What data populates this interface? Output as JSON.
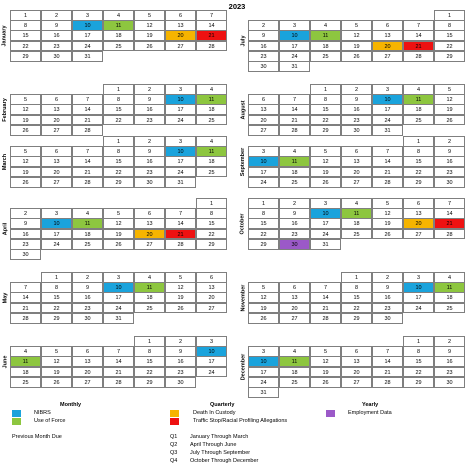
{
  "year": "2023",
  "colors": {
    "nibrs": "#1aa3dc",
    "force": "#8dc63f",
    "death": "#f6b400",
    "traffic": "#ee1111",
    "employ": "#9b59c8"
  },
  "months": [
    {
      "name": "January",
      "side": "left",
      "row": 0,
      "weeks": [
        [
          "1",
          "2",
          "3",
          "4",
          "5",
          "6",
          "7"
        ],
        [
          "8",
          "9",
          "10",
          "11",
          "12",
          "13",
          "14"
        ],
        [
          "15",
          "16",
          "17",
          "18",
          "19",
          "20",
          "21"
        ],
        [
          "22",
          "23",
          "24",
          "25",
          "26",
          "27",
          "28"
        ],
        [
          "29",
          "30",
          "31",
          "",
          "",
          "",
          ""
        ]
      ],
      "marks": {
        "10": "nibrs",
        "11": "force",
        "20": "death",
        "21": "traffic"
      }
    },
    {
      "name": "February",
      "side": "left",
      "row": 1,
      "weeks": [
        [
          "",
          "",
          "",
          "1",
          "2",
          "3",
          "4"
        ],
        [
          "5",
          "6",
          "7",
          "8",
          "9",
          "10",
          "11"
        ],
        [
          "12",
          "13",
          "14",
          "15",
          "16",
          "17",
          "18"
        ],
        [
          "19",
          "20",
          "21",
          "22",
          "23",
          "24",
          "25"
        ],
        [
          "26",
          "27",
          "28",
          "",
          "",
          "",
          ""
        ]
      ],
      "marks": {
        "10": "nibrs",
        "11": "force"
      }
    },
    {
      "name": "March",
      "side": "left",
      "row": 2,
      "weeks": [
        [
          "",
          "",
          "",
          "1",
          "2",
          "3",
          "4"
        ],
        [
          "5",
          "6",
          "7",
          "8",
          "9",
          "10",
          "11"
        ],
        [
          "12",
          "13",
          "14",
          "15",
          "16",
          "17",
          "18"
        ],
        [
          "19",
          "20",
          "21",
          "22",
          "23",
          "24",
          "25"
        ],
        [
          "26",
          "27",
          "28",
          "29",
          "30",
          "31",
          ""
        ]
      ],
      "marks": {
        "10": "nibrs",
        "11": "force"
      }
    },
    {
      "name": "April",
      "side": "left",
      "row": 3,
      "weeks": [
        [
          "",
          "",
          "",
          "",
          "",
          "",
          "1"
        ],
        [
          "2",
          "3",
          "4",
          "5",
          "6",
          "7",
          "8"
        ],
        [
          "9",
          "10",
          "11",
          "12",
          "13",
          "14",
          "15"
        ],
        [
          "16",
          "17",
          "18",
          "19",
          "20",
          "21",
          "22"
        ],
        [
          "23",
          "24",
          "25",
          "26",
          "27",
          "28",
          "29"
        ],
        [
          "30",
          "",
          "",
          "",
          "",
          "",
          ""
        ]
      ],
      "marks": {
        "10": "nibrs",
        "11": "force",
        "20": "death",
        "21": "traffic"
      }
    },
    {
      "name": "May",
      "side": "left",
      "row": 4,
      "weeks": [
        [
          "",
          "1",
          "2",
          "3",
          "4",
          "5",
          "6"
        ],
        [
          "7",
          "8",
          "9",
          "10",
          "11",
          "12",
          "13"
        ],
        [
          "14",
          "15",
          "16",
          "17",
          "18",
          "19",
          "20"
        ],
        [
          "21",
          "22",
          "23",
          "24",
          "25",
          "26",
          "27"
        ],
        [
          "28",
          "29",
          "30",
          "31",
          "",
          "",
          ""
        ]
      ],
      "marks": {
        "10": "nibrs",
        "11": "force"
      }
    },
    {
      "name": "June",
      "side": "left",
      "row": 5,
      "weeks": [
        [
          "",
          "",
          "",
          "",
          "1",
          "2",
          "3"
        ],
        [
          "4",
          "5",
          "6",
          "7",
          "8",
          "9",
          "10"
        ],
        [
          "11",
          "12",
          "13",
          "14",
          "15",
          "16",
          "17"
        ],
        [
          "18",
          "19",
          "20",
          "21",
          "22",
          "23",
          "24"
        ],
        [
          "25",
          "26",
          "27",
          "28",
          "29",
          "30",
          ""
        ]
      ],
      "marks": {
        "10": "nibrs",
        "11": "force"
      }
    },
    {
      "name": "July",
      "side": "right",
      "row": 0,
      "weeks": [
        [
          "",
          "",
          "",
          "",
          "",
          "",
          "1"
        ],
        [
          "2",
          "3",
          "4",
          "5",
          "6",
          "7",
          "8"
        ],
        [
          "9",
          "10",
          "11",
          "12",
          "13",
          "14",
          "15"
        ],
        [
          "16",
          "17",
          "18",
          "19",
          "20",
          "21",
          "22"
        ],
        [
          "23",
          "24",
          "25",
          "26",
          "27",
          "28",
          "29"
        ],
        [
          "30",
          "31",
          "",
          "",
          "",
          "",
          ""
        ]
      ],
      "marks": {
        "10": "nibrs",
        "11": "force",
        "20": "death",
        "21": "traffic"
      }
    },
    {
      "name": "August",
      "side": "right",
      "row": 1,
      "weeks": [
        [
          "",
          "",
          "1",
          "2",
          "3",
          "4",
          "5"
        ],
        [
          "6",
          "7",
          "8",
          "9",
          "10",
          "11",
          "12"
        ],
        [
          "13",
          "14",
          "15",
          "16",
          "17",
          "18",
          "19"
        ],
        [
          "20",
          "21",
          "22",
          "23",
          "24",
          "25",
          "26"
        ],
        [
          "27",
          "28",
          "29",
          "30",
          "31",
          "",
          ""
        ]
      ],
      "marks": {
        "10": "nibrs",
        "11": "force"
      }
    },
    {
      "name": "September",
      "side": "right",
      "row": 2,
      "weeks": [
        [
          "",
          "",
          "",
          "",
          "",
          "1",
          "2"
        ],
        [
          "3",
          "4",
          "5",
          "6",
          "7",
          "8",
          "9"
        ],
        [
          "10",
          "11",
          "12",
          "13",
          "14",
          "15",
          "16"
        ],
        [
          "17",
          "18",
          "19",
          "20",
          "21",
          "22",
          "23"
        ],
        [
          "24",
          "25",
          "26",
          "27",
          "28",
          "29",
          "30"
        ]
      ],
      "marks": {
        "10": "nibrs",
        "11": "force"
      }
    },
    {
      "name": "October",
      "side": "right",
      "row": 3,
      "weeks": [
        [
          "1",
          "2",
          "3",
          "4",
          "5",
          "6",
          "7"
        ],
        [
          "8",
          "9",
          "10",
          "11",
          "12",
          "13",
          "14"
        ],
        [
          "15",
          "16",
          "17",
          "18",
          "19",
          "20",
          "21"
        ],
        [
          "22",
          "23",
          "24",
          "25",
          "26",
          "27",
          "28"
        ],
        [
          "29",
          "30",
          "31",
          "",
          "",
          "",
          ""
        ]
      ],
      "marks": {
        "10": "nibrs",
        "11": "force",
        "20": "death",
        "21": "traffic",
        "30": "employ"
      }
    },
    {
      "name": "November",
      "side": "right",
      "row": 4,
      "weeks": [
        [
          "",
          "",
          "",
          "1",
          "2",
          "3",
          "4"
        ],
        [
          "5",
          "6",
          "7",
          "8",
          "9",
          "10",
          "11"
        ],
        [
          "12",
          "13",
          "14",
          "15",
          "16",
          "17",
          "18"
        ],
        [
          "19",
          "20",
          "21",
          "22",
          "23",
          "24",
          "25"
        ],
        [
          "26",
          "27",
          "28",
          "29",
          "30",
          "",
          ""
        ]
      ],
      "marks": {
        "10": "nibrs",
        "11": "force"
      }
    },
    {
      "name": "December",
      "side": "right",
      "row": 5,
      "weeks": [
        [
          "",
          "",
          "",
          "",
          "",
          "1",
          "2"
        ],
        [
          "3",
          "4",
          "5",
          "6",
          "7",
          "8",
          "9"
        ],
        [
          "10",
          "11",
          "12",
          "13",
          "14",
          "15",
          "16"
        ],
        [
          "17",
          "18",
          "19",
          "20",
          "21",
          "22",
          "23"
        ],
        [
          "24",
          "25",
          "26",
          "27",
          "28",
          "29",
          "30"
        ],
        [
          "31",
          "",
          "",
          "",
          "",
          "",
          ""
        ]
      ],
      "marks": {
        "10": "nibrs",
        "11": "force"
      }
    }
  ],
  "legend": {
    "monthly": "Monthly",
    "quarterly": "Quarterly",
    "yearly": "Yearly",
    "nibrs": "NIBRS",
    "force": "Use of Force",
    "death": "Death In Custody",
    "traffic": "Traffic Stop/Racial Profiling Allegations",
    "employ": "Employment Data",
    "prev_month": "Previous Month Due",
    "quarters": [
      {
        "q": "Q1",
        "text": "January Through March"
      },
      {
        "q": "Q2",
        "text": "April Through June"
      },
      {
        "q": "Q3",
        "text": "July Through September"
      },
      {
        "q": "Q4",
        "text": "October Through December"
      }
    ]
  }
}
